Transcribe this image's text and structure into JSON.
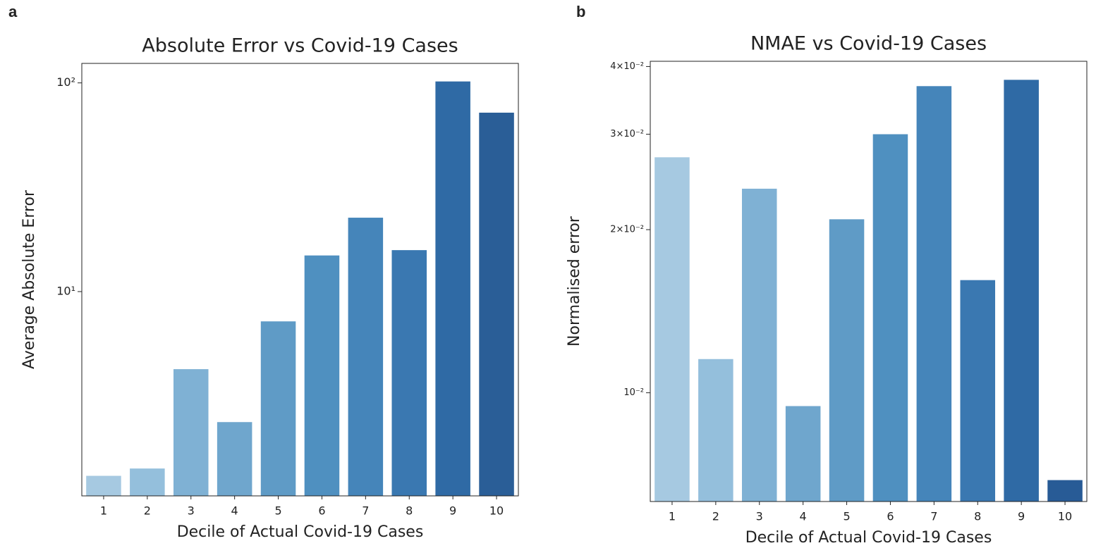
{
  "chart_data": [
    {
      "type": "bar",
      "panel_label": "a",
      "title": "Absolute Error vs Covid-19 Cases",
      "x_label": "Decile of Actual Covid-19 Cases",
      "y_label": "Average Absolute Error",
      "categories": [
        "1",
        "2",
        "3",
        "4",
        "5",
        "6",
        "7",
        "8",
        "9",
        "10"
      ],
      "values": [
        1.31,
        1.42,
        4.25,
        2.37,
        7.2,
        14.9,
        22.6,
        15.8,
        101.6,
        72
      ],
      "colors": [
        "#a6c9e1",
        "#94bfdc",
        "#7fb1d4",
        "#6fa6cd",
        "#5f9bc6",
        "#4f90c0",
        "#4585ba",
        "#3a78b1",
        "#2f6aa5",
        "#2a5e97"
      ],
      "log_scale": true,
      "ylim": [
        1.05,
        124
      ],
      "yticks": [
        {
          "value": 10,
          "label": "10¹"
        },
        {
          "value": 100,
          "label": "10²"
        }
      ]
    },
    {
      "type": "bar",
      "panel_label": "b",
      "title": "NMAE vs Covid-19 Cases",
      "x_label": "Decile of Actual Covid-19 Cases",
      "y_label": "Normalised error",
      "categories": [
        "1",
        "2",
        "3",
        "4",
        "5",
        "6",
        "7",
        "8",
        "9",
        "10"
      ],
      "values": [
        0.0272,
        0.01154,
        0.0238,
        0.00945,
        0.0209,
        0.03,
        0.0368,
        0.01614,
        0.0378,
        0.0069
      ],
      "colors": [
        "#a6c9e1",
        "#94bfdc",
        "#7fb1d4",
        "#6fa6cd",
        "#5f9bc6",
        "#4f90c0",
        "#4585ba",
        "#3a78b1",
        "#2f6aa5",
        "#285b96"
      ],
      "log_scale": true,
      "ylim": [
        0.0063,
        0.0409
      ],
      "yticks": [
        {
          "value": 0.01,
          "label": "10⁻²"
        },
        {
          "value": 0.02,
          "label": "2×10⁻²"
        },
        {
          "value": 0.03,
          "label": "3×10⁻²"
        },
        {
          "value": 0.04,
          "label": "4×10⁻²"
        }
      ]
    }
  ]
}
